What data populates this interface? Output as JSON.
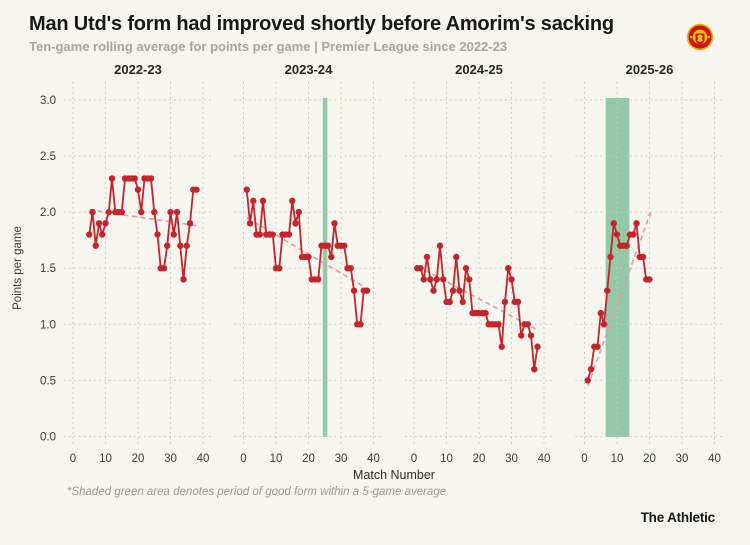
{
  "header": {
    "title": "Man Utd's form had improved shortly before Amorim's sacking",
    "subtitle": "Ten-game rolling average for points per game | Premier League since 2022-23",
    "logo": "manchester-united-crest"
  },
  "footnote": "*Shaded green area denotes period of good form within a 5-game average",
  "branding": "The Athletic",
  "chart_data": {
    "type": "line",
    "xlabel": "Match Number",
    "ylabel": "Points per game",
    "xlim": [
      0,
      40
    ],
    "ylim": [
      0.0,
      3.0
    ],
    "x_ticks": [
      0,
      10,
      20,
      30,
      40
    ],
    "y_ticks": [
      3.0,
      2.5,
      2.0,
      1.5,
      1.0,
      0.5,
      0.0
    ],
    "grid": true,
    "colors": {
      "line": "#c5242b",
      "point": "#c5242b",
      "trend": "#e29da0",
      "band": "#93c9a6",
      "grid": "#c8c8c0",
      "tick_text": "#3c3c3a",
      "season_text": "#262624"
    },
    "facets": [
      {
        "season": "2022-23",
        "start_match": 5,
        "values": [
          1.8,
          2.0,
          1.7,
          1.9,
          1.8,
          1.9,
          2.0,
          2.3,
          2.0,
          2.0,
          2.0,
          2.3,
          2.3,
          2.3,
          2.3,
          2.2,
          2.0,
          2.3,
          2.3,
          2.3,
          2.0,
          1.8,
          1.5,
          1.5,
          1.7,
          2.0,
          1.8,
          2.0,
          1.7,
          1.4,
          1.7,
          1.9,
          2.2,
          2.2
        ],
        "trend": {
          "m1": 5,
          "v1": 2.02,
          "m2": 38,
          "v2": 1.88
        },
        "highlight_band": null,
        "trend_arrow": false
      },
      {
        "season": "2023-24",
        "start_match": 1,
        "values": [
          2.2,
          1.9,
          2.1,
          1.8,
          1.8,
          2.1,
          1.8,
          1.8,
          1.8,
          1.5,
          1.5,
          1.8,
          1.8,
          1.8,
          2.1,
          1.9,
          2.0,
          1.6,
          1.6,
          1.6,
          1.4,
          1.4,
          1.4,
          1.7,
          1.7,
          1.7,
          1.6,
          1.9,
          1.7,
          1.7,
          1.7,
          1.5,
          1.5,
          1.3,
          1.0,
          1.0,
          1.3,
          1.3
        ],
        "trend": {
          "m1": 1,
          "v1": 1.95,
          "m2": 38,
          "v2": 1.32
        },
        "highlight_band": {
          "from_match": 24.4,
          "to_match": 25.8
        },
        "trend_arrow": false
      },
      {
        "season": "2024-25",
        "start_match": 1,
        "values": [
          1.5,
          1.5,
          1.4,
          1.6,
          1.4,
          1.3,
          1.4,
          1.7,
          1.4,
          1.2,
          1.2,
          1.3,
          1.6,
          1.3,
          1.2,
          1.5,
          1.4,
          1.1,
          1.1,
          1.1,
          1.1,
          1.1,
          1.0,
          1.0,
          1.0,
          1.0,
          0.8,
          1.2,
          1.5,
          1.4,
          1.2,
          1.2,
          0.9,
          1.0,
          1.0,
          0.9,
          0.6,
          0.8
        ],
        "trend": {
          "m1": 1,
          "v1": 1.52,
          "m2": 38,
          "v2": 0.95
        },
        "highlight_band": null,
        "trend_arrow": false
      },
      {
        "season": "2025-26",
        "start_match": 1,
        "values": [
          0.5,
          0.6,
          0.8,
          0.8,
          1.1,
          1.0,
          1.3,
          1.6,
          1.9,
          1.8,
          1.7,
          1.7,
          1.7,
          1.8,
          1.8,
          1.9,
          1.6,
          1.6,
          1.4,
          1.4
        ],
        "trend": {
          "m1": 1,
          "v1": 0.45,
          "m2": 20,
          "v2": 1.97
        },
        "highlight_band": {
          "from_match": 6.5,
          "to_match": 13.8
        },
        "trend_arrow": true
      }
    ],
    "legend_position": "none",
    "annotation": "Shaded green area denotes period of good form within a 5-game average"
  }
}
